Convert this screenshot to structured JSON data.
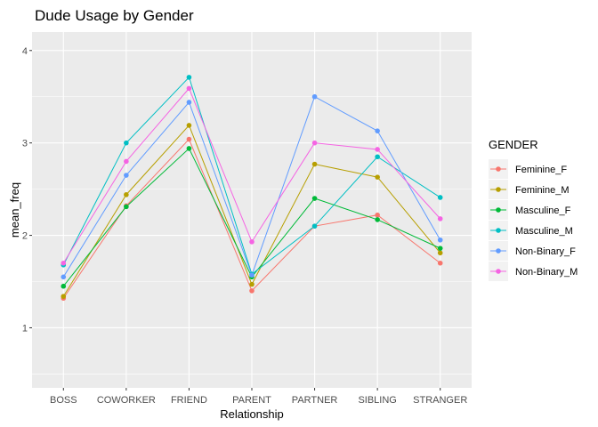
{
  "chart_data": {
    "type": "line",
    "title": "Dude Usage by Gender",
    "xlabel": "Relationship",
    "ylabel": "mean_freq",
    "categories": [
      "BOSS",
      "COWORKER",
      "FRIEND",
      "PARENT",
      "PARTNER",
      "SIBLING",
      "STRANGER"
    ],
    "ylim": [
      0.35,
      4.2
    ],
    "yticks": [
      1,
      2,
      3,
      4
    ],
    "grid": true,
    "legend": {
      "title": "GENDER",
      "position": "right"
    },
    "series": [
      {
        "name": "Feminine_F",
        "color": "#F8766D",
        "values": [
          1.32,
          2.32,
          3.04,
          1.4,
          2.1,
          2.22,
          1.7
        ]
      },
      {
        "name": "Feminine_M",
        "color": "#B79F00",
        "values": [
          1.34,
          2.44,
          3.19,
          1.47,
          2.77,
          2.63,
          1.81
        ]
      },
      {
        "name": "Masculine_F",
        "color": "#00BA38",
        "values": [
          1.45,
          2.31,
          2.94,
          1.55,
          2.4,
          2.17,
          1.86
        ]
      },
      {
        "name": "Masculine_M",
        "color": "#00BFC4",
        "values": [
          1.68,
          3.0,
          3.71,
          1.58,
          2.1,
          2.85,
          2.41
        ]
      },
      {
        "name": "Non-Binary_F",
        "color": "#619CFF",
        "values": [
          1.55,
          2.65,
          3.44,
          1.57,
          3.5,
          3.13,
          1.95
        ]
      },
      {
        "name": "Non-Binary_M",
        "color": "#F564E3",
        "values": [
          1.7,
          2.8,
          3.59,
          1.93,
          3.0,
          2.93,
          2.18
        ]
      }
    ]
  }
}
